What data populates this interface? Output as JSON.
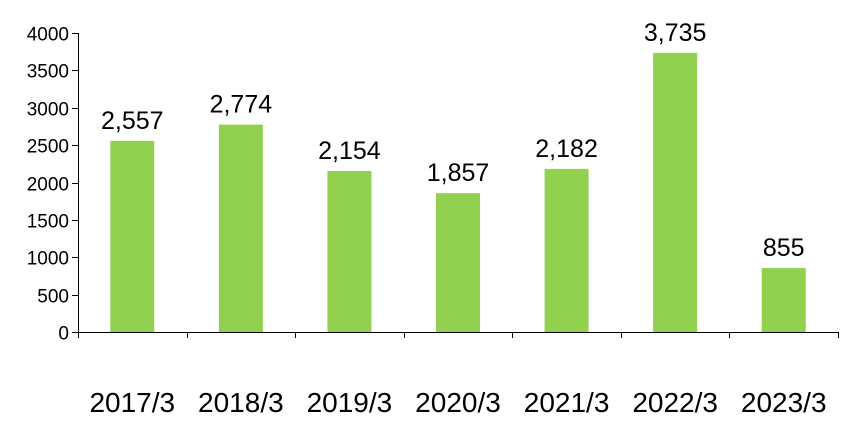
{
  "chart_data": {
    "type": "bar",
    "title": "",
    "xlabel": "",
    "ylabel": "",
    "categories": [
      "2017/3",
      "2018/3",
      "2019/3",
      "2020/3",
      "2021/3",
      "2022/3",
      "2023/3"
    ],
    "values": [
      2557,
      2774,
      2154,
      1857,
      2182,
      3735,
      855
    ],
    "data_labels": [
      "2,557",
      "2,774",
      "2,154",
      "1,857",
      "2,182",
      "3,735",
      "855"
    ],
    "y_ticks": [
      0,
      500,
      1000,
      1500,
      2000,
      2500,
      3000,
      3500,
      4000
    ],
    "ylim": [
      0,
      4000
    ],
    "grid": false,
    "legend": "none",
    "bar_color": "#92D050"
  }
}
